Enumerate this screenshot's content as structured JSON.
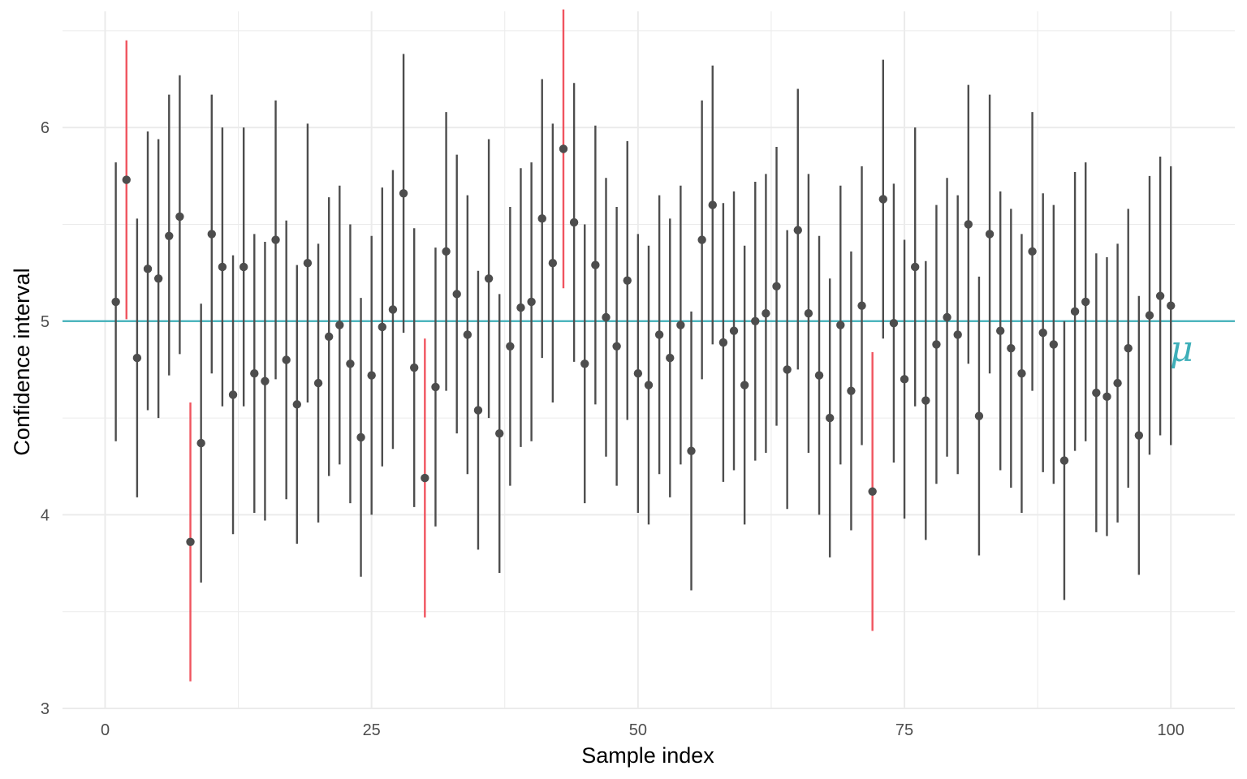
{
  "chart_data": {
    "type": "scatter",
    "title": "",
    "xlabel": "Sample index",
    "ylabel": "Confidence interval",
    "xlim": [
      -4,
      106
    ],
    "ylim": [
      3,
      6.6
    ],
    "x_ticks": [
      0,
      25,
      50,
      75,
      100
    ],
    "y_ticks": [
      3,
      4,
      5,
      6
    ],
    "grid": true,
    "legend": "none",
    "reference_line": {
      "y": 5,
      "label": "μ",
      "color": "#3eafb9"
    },
    "colors": {
      "covers": "#4d4d4d",
      "misses": "#f0545f",
      "point": "#4d4d4d",
      "grid": "#ebebeb"
    },
    "series": [
      {
        "x": [
          1,
          2,
          3,
          4,
          5,
          6,
          7,
          8,
          9,
          10,
          11,
          12,
          13,
          14,
          15,
          16,
          17,
          18,
          19,
          20,
          21,
          22,
          23,
          24,
          25,
          26,
          27,
          28,
          29,
          30,
          31,
          32,
          33,
          34,
          35,
          36,
          37,
          38,
          39,
          40,
          41,
          42,
          43,
          44,
          45,
          46,
          47,
          48,
          49,
          50,
          51,
          52,
          53,
          54,
          55,
          56,
          57,
          58,
          59,
          60,
          61,
          62,
          63,
          64,
          65,
          66,
          67,
          68,
          69,
          70,
          71,
          72,
          73,
          74,
          75,
          76,
          77,
          78,
          79,
          80,
          81,
          82,
          83,
          84,
          85,
          86,
          87,
          88,
          89,
          90,
          91,
          92,
          93,
          94,
          95,
          96,
          97,
          98,
          99,
          100
        ],
        "estimate": [
          5.1,
          5.73,
          4.81,
          5.27,
          5.22,
          5.44,
          5.54,
          3.86,
          4.37,
          5.45,
          5.28,
          4.62,
          5.28,
          4.73,
          4.69,
          5.42,
          4.8,
          4.57,
          5.3,
          4.68,
          4.92,
          4.98,
          4.78,
          4.4,
          4.72,
          4.97,
          5.06,
          5.66,
          4.76,
          4.19,
          4.66,
          5.36,
          5.14,
          4.93,
          4.54,
          5.22,
          4.42,
          4.87,
          5.07,
          5.1,
          5.53,
          5.3,
          5.89,
          5.51,
          4.78,
          5.29,
          5.02,
          4.87,
          5.21,
          4.73,
          4.67,
          4.93,
          4.81,
          4.98,
          4.33,
          5.42,
          5.6,
          4.89,
          4.95,
          4.67,
          5.0,
          5.04,
          5.18,
          4.75,
          5.47,
          5.04,
          4.72,
          4.5,
          4.98,
          4.64,
          5.08,
          4.12,
          5.63,
          4.99,
          4.7,
          5.28,
          4.59,
          4.88,
          5.02,
          4.93,
          5.5,
          4.51,
          5.45,
          4.95,
          4.86,
          4.73,
          5.36,
          4.94,
          4.88,
          4.28,
          5.05,
          5.1,
          4.63,
          4.61,
          4.68,
          4.86,
          4.41,
          5.03,
          5.13,
          5.08
        ],
        "lower": [
          4.38,
          5.01,
          4.09,
          4.54,
          4.5,
          4.72,
          4.83,
          3.14,
          3.65,
          4.73,
          4.56,
          3.9,
          4.56,
          4.01,
          3.97,
          4.7,
          4.08,
          3.85,
          4.58,
          3.96,
          4.2,
          4.26,
          4.06,
          3.68,
          4.0,
          4.25,
          4.34,
          4.94,
          4.04,
          3.47,
          3.94,
          4.64,
          4.42,
          4.21,
          3.82,
          4.5,
          3.7,
          4.15,
          4.35,
          4.38,
          4.81,
          4.58,
          5.17,
          4.79,
          4.06,
          4.57,
          4.3,
          4.15,
          4.49,
          4.01,
          3.95,
          4.21,
          4.09,
          4.26,
          3.61,
          4.7,
          4.88,
          4.17,
          4.23,
          3.95,
          4.28,
          4.32,
          4.46,
          4.03,
          4.75,
          4.32,
          4.0,
          3.78,
          4.26,
          3.92,
          4.36,
          3.4,
          4.91,
          4.27,
          3.98,
          4.56,
          3.87,
          4.16,
          4.3,
          4.21,
          4.78,
          3.79,
          4.73,
          4.23,
          4.14,
          4.01,
          4.64,
          4.22,
          4.16,
          3.56,
          4.33,
          4.38,
          3.91,
          3.89,
          3.96,
          4.14,
          3.69,
          4.31,
          4.41,
          4.36
        ],
        "upper": [
          5.82,
          6.45,
          5.53,
          5.98,
          5.94,
          6.17,
          6.27,
          4.58,
          5.09,
          6.17,
          6.0,
          5.34,
          6.0,
          5.45,
          5.41,
          6.14,
          5.52,
          5.29,
          6.02,
          5.4,
          5.64,
          5.7,
          5.5,
          5.12,
          5.44,
          5.69,
          5.78,
          6.38,
          5.48,
          4.91,
          5.38,
          6.08,
          5.86,
          5.65,
          5.26,
          5.94,
          5.14,
          5.59,
          5.79,
          5.82,
          6.25,
          6.02,
          6.61,
          6.23,
          5.5,
          6.01,
          5.74,
          5.59,
          5.93,
          5.45,
          5.39,
          5.65,
          5.53,
          5.7,
          5.05,
          6.14,
          6.32,
          5.61,
          5.67,
          5.39,
          5.72,
          5.76,
          5.9,
          5.47,
          6.2,
          5.76,
          5.44,
          5.22,
          5.7,
          5.36,
          5.8,
          4.84,
          6.35,
          5.71,
          5.42,
          6.0,
          5.31,
          5.6,
          5.74,
          5.65,
          6.22,
          5.23,
          6.17,
          5.67,
          5.58,
          5.45,
          6.08,
          5.66,
          5.6,
          5.0,
          5.77,
          5.82,
          5.35,
          5.33,
          5.4,
          5.58,
          5.13,
          5.75,
          5.85,
          5.8
        ]
      }
    ]
  }
}
